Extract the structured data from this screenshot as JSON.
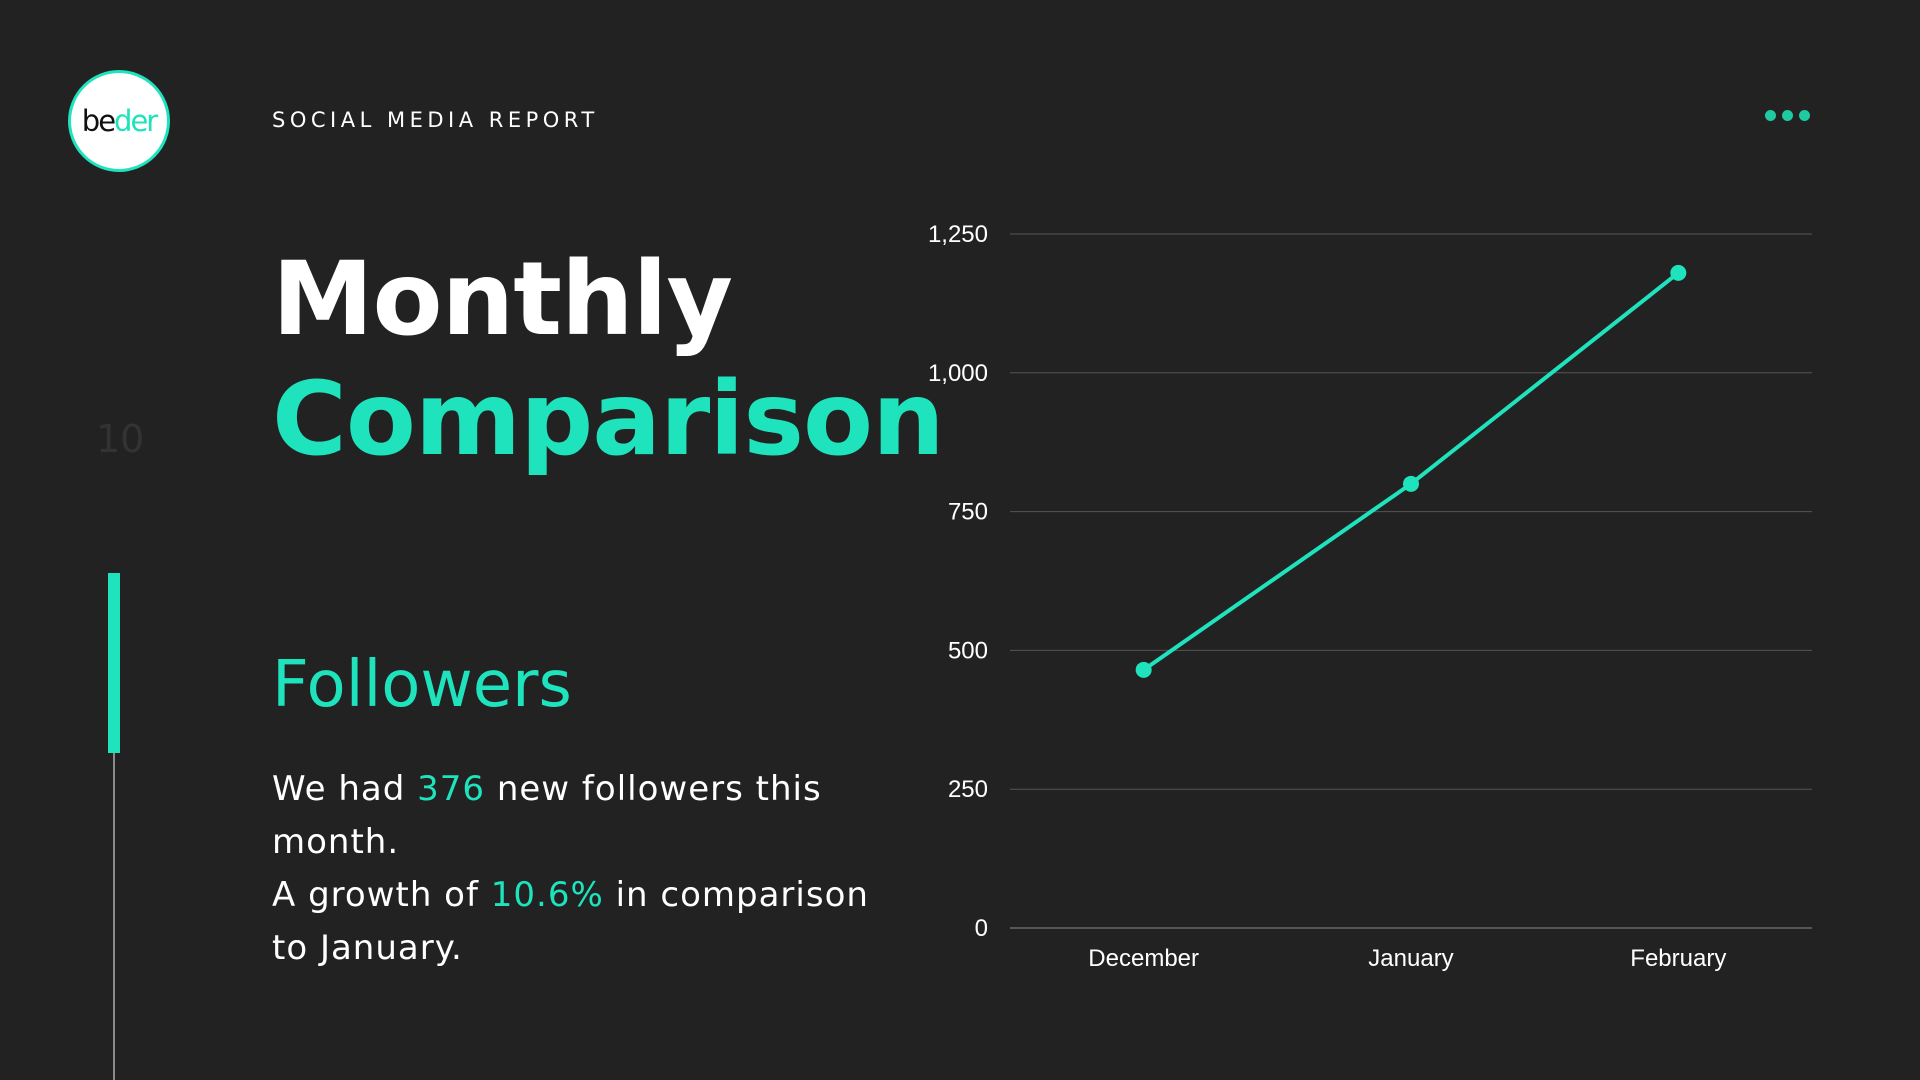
{
  "header": {
    "logo": {
      "part1": "be",
      "part2": "der"
    },
    "report_label": "SOCIAL MEDIA REPORT",
    "menu_icon": "more-horizontal-icon"
  },
  "page_number": "10",
  "title": {
    "line1": "Monthly",
    "line2": "Comparison"
  },
  "section": {
    "heading": "Followers",
    "body": {
      "s1_prefix": "We had ",
      "s1_value": "376",
      "s1_suffix": " new followers this month.",
      "s2_prefix": "A growth of ",
      "s2_value": "10.6%",
      "s2_suffix": " in comparison to January."
    }
  },
  "colors": {
    "background": "#222222",
    "accent": "#1ee3bd",
    "text": "#ffffff",
    "grid": "#555555"
  },
  "chart_data": {
    "type": "line",
    "categories": [
      "December",
      "January",
      "February"
    ],
    "series": [
      {
        "values": [
          465,
          800,
          1180
        ]
      }
    ],
    "ylim": [
      0,
      1250
    ],
    "yticks": [
      0,
      250,
      500,
      750,
      1000,
      1250
    ],
    "ytick_labels": [
      "0",
      "250",
      "500",
      "750",
      "1,000",
      "1,250"
    ],
    "grid": true,
    "markers": true,
    "title": "",
    "xlabel": "",
    "ylabel": ""
  }
}
